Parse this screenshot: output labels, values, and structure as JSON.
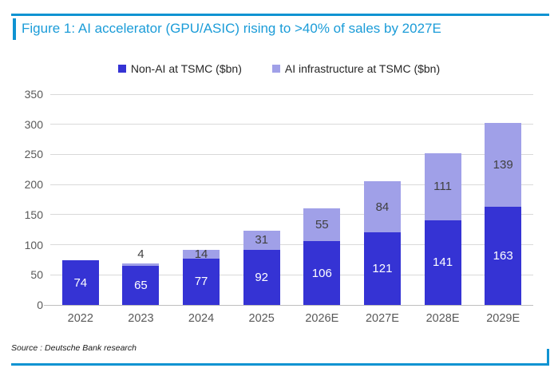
{
  "figure": {
    "title": "Figure 1: AI accelerator (GPU/ASIC) rising to >40% of sales by 2027E"
  },
  "legend": {
    "items": [
      {
        "label": "Non-AI at TSMC ($bn)"
      },
      {
        "label": "AI infrastructure at TSMC ($bn)"
      }
    ]
  },
  "chart_data": {
    "type": "bar",
    "stacked": true,
    "title": "Figure 1: AI accelerator (GPU/ASIC) rising to >40% of sales by 2027E",
    "categories": [
      "2022",
      "2023",
      "2024",
      "2025",
      "2026E",
      "2027E",
      "2028E",
      "2029E"
    ],
    "series": [
      {
        "name": "Non-AI at TSMC ($bn)",
        "color": "#3533d4",
        "values": [
          74,
          65,
          77,
          92,
          106,
          121,
          141,
          163
        ]
      },
      {
        "name": "AI infrastructure at TSMC ($bn)",
        "color": "#a0a0e8",
        "values": [
          null,
          4,
          14,
          31,
          55,
          84,
          111,
          139
        ]
      }
    ],
    "ylim": [
      0,
      350
    ],
    "ytick_step": 50,
    "grid": true,
    "legend_position": "top-center",
    "value_labels": true,
    "xlabel": "",
    "ylabel": ""
  },
  "footer": {
    "source": "Source : Deutsche Bank research"
  },
  "colors": {
    "accent_rule": "#0f93d2",
    "title_text": "#1b9cd8",
    "non_ai_bar": "#3533d4",
    "ai_bar": "#a0a0e8",
    "gridline": "#d9d9d9",
    "zero_line": "#bfbfbf",
    "axis_text": "#595959",
    "label_on_dark": "#ffffff",
    "label_on_light": "#404040",
    "legend_text": "#262626",
    "source_text": "#1a1a1a"
  }
}
